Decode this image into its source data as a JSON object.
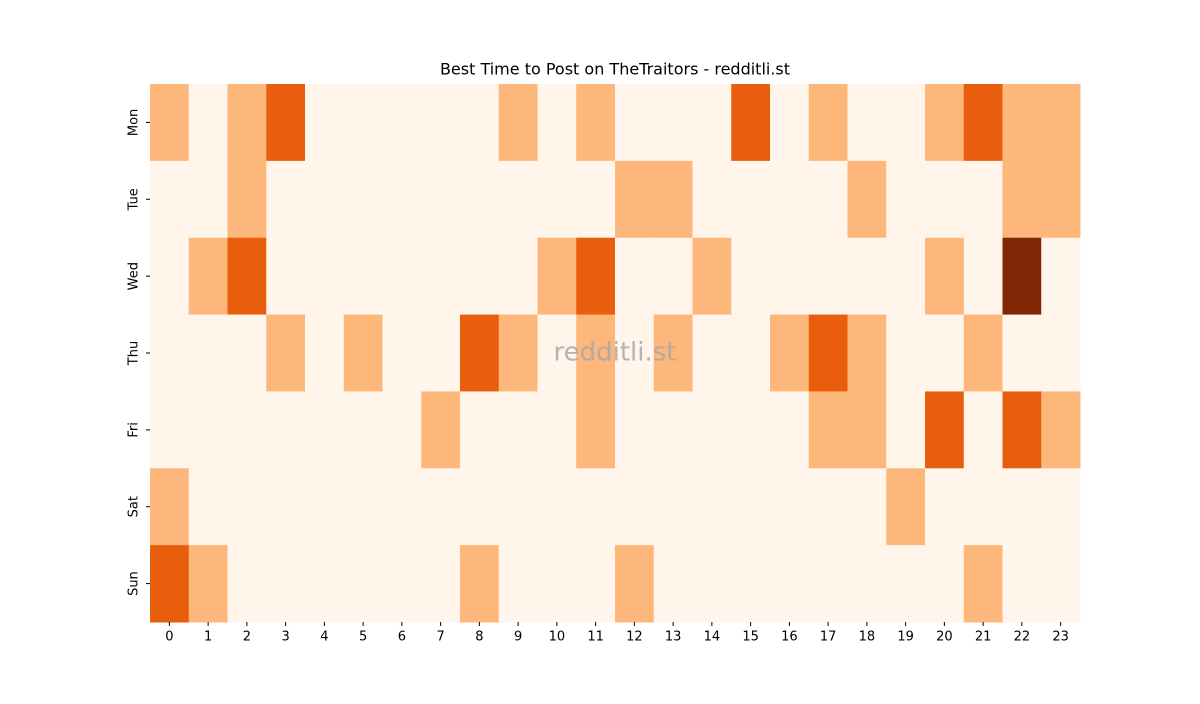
{
  "chart_data": {
    "type": "heatmap",
    "title": "Best Time to Post on TheTraitors - redditli.st",
    "watermark": "redditli.st",
    "x_categories": [
      "0",
      "1",
      "2",
      "3",
      "4",
      "5",
      "6",
      "7",
      "8",
      "9",
      "10",
      "11",
      "12",
      "13",
      "14",
      "15",
      "16",
      "17",
      "18",
      "19",
      "20",
      "21",
      "22",
      "23"
    ],
    "y_categories": [
      "Mon",
      "Tue",
      "Wed",
      "Thu",
      "Fri",
      "Sat",
      "Sun"
    ],
    "values": [
      [
        1,
        0,
        1,
        2,
        0,
        0,
        0,
        0,
        0,
        1,
        0,
        1,
        0,
        0,
        0,
        2,
        0,
        1,
        0,
        0,
        1,
        2,
        1,
        1
      ],
      [
        0,
        0,
        1,
        0,
        0,
        0,
        0,
        0,
        0,
        0,
        0,
        0,
        1,
        1,
        0,
        0,
        0,
        0,
        1,
        0,
        0,
        0,
        1,
        1
      ],
      [
        0,
        1,
        2,
        0,
        0,
        0,
        0,
        0,
        0,
        0,
        1,
        2,
        0,
        0,
        1,
        0,
        0,
        0,
        0,
        0,
        1,
        0,
        3,
        0
      ],
      [
        0,
        0,
        0,
        1,
        0,
        1,
        0,
        0,
        2,
        1,
        0,
        1,
        0,
        1,
        0,
        0,
        1,
        2,
        1,
        0,
        0,
        1,
        0,
        0
      ],
      [
        0,
        0,
        0,
        0,
        0,
        0,
        0,
        1,
        0,
        0,
        0,
        1,
        0,
        0,
        0,
        0,
        0,
        1,
        1,
        0,
        2,
        0,
        2,
        1
      ],
      [
        1,
        0,
        0,
        0,
        0,
        0,
        0,
        0,
        0,
        0,
        0,
        0,
        0,
        0,
        0,
        0,
        0,
        0,
        0,
        1,
        0,
        0,
        0,
        0
      ],
      [
        2,
        1,
        0,
        0,
        0,
        0,
        0,
        0,
        1,
        0,
        0,
        0,
        1,
        0,
        0,
        0,
        0,
        0,
        0,
        0,
        0,
        1,
        0,
        0
      ]
    ],
    "colorscale": [
      "#fff5eb",
      "#fdb77a",
      "#e95e0d",
      "#7f2704"
    ]
  }
}
